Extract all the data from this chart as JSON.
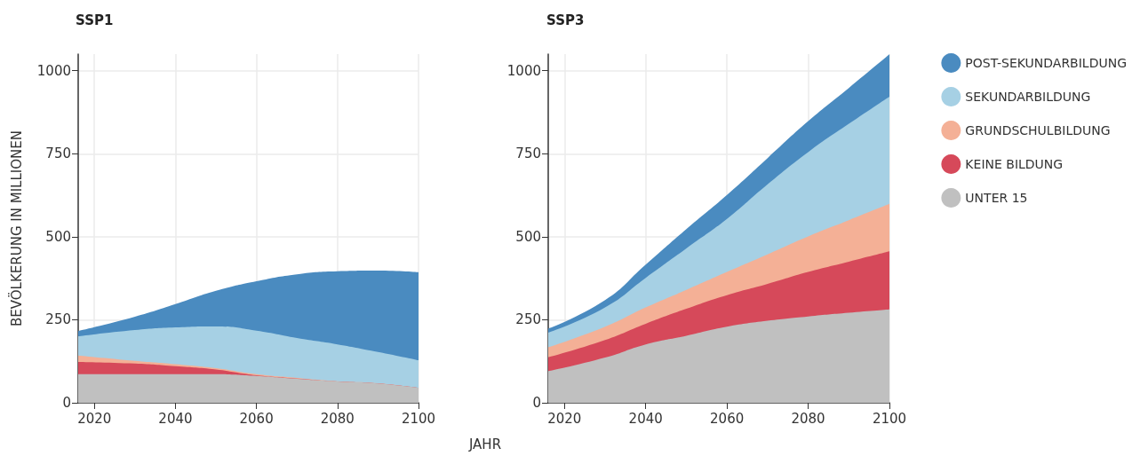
{
  "chart_data": [
    {
      "type": "area",
      "stacked": true,
      "title": "SSP1",
      "xlabel": "JAHR",
      "ylabel": "BEVÖLKERUNG IN MILLIONEN",
      "x": [
        2016,
        2030,
        2040,
        2050,
        2060,
        2070,
        2080,
        2090,
        2100
      ],
      "xlim": [
        2016,
        2100
      ],
      "xticks": [
        2020,
        2040,
        2060,
        2080,
        2100
      ],
      "ylim": [
        0,
        1050
      ],
      "yticks": [
        0,
        250,
        500,
        750,
        1000
      ],
      "grid": true,
      "legend": false,
      "series": [
        {
          "color": "#c0c0c0",
          "values": [
            86,
            86,
            86,
            86,
            81,
            72,
            64,
            58,
            45
          ]
        },
        {
          "color": "#d6495a",
          "values": [
            37,
            32,
            24,
            14,
            2,
            1,
            0,
            0,
            0
          ]
        },
        {
          "color": "#f4b096",
          "values": [
            19,
            8,
            6,
            4,
            3,
            2,
            1,
            1,
            0
          ]
        },
        {
          "color": "#a6d0e4",
          "values": [
            58,
            93,
            111,
            126,
            131,
            120,
            111,
            94,
            83
          ]
        },
        {
          "color": "#4a8bc0",
          "values": [
            16,
            40,
            70,
            107,
            149,
            192,
            220,
            245,
            265
          ]
        }
      ]
    },
    {
      "type": "area",
      "stacked": true,
      "title": "SSP3",
      "x": [
        2016,
        2030,
        2040,
        2050,
        2060,
        2070,
        2080,
        2090,
        2100
      ],
      "xlim": [
        2016,
        2100
      ],
      "xticks": [
        2020,
        2040,
        2060,
        2080,
        2100
      ],
      "ylim": [
        0,
        1050
      ],
      "yticks": [
        0,
        250,
        500,
        750,
        1000
      ],
      "grid": true,
      "legend": "right",
      "series": [
        {
          "name": "UNTER 15",
          "color": "#c0c0c0",
          "values": [
            95,
            136,
            176,
            202,
            229,
            247,
            260,
            271,
            281
          ]
        },
        {
          "name": "KEINE BILDUNG",
          "color": "#d6495a",
          "values": [
            42,
            53,
            62,
            81,
            95,
            111,
            134,
            154,
            175
          ]
        },
        {
          "name": "GRUNDSCHULBILDUNG",
          "color": "#f4b096",
          "values": [
            30,
            40,
            49,
            57,
            70,
            89,
            107,
            125,
            143
          ]
        },
        {
          "name": "SEKUNDARBILDUNG",
          "color": "#a6d0e4",
          "values": [
            44,
            58,
            89,
            125,
            160,
            211,
            254,
            290,
            323
          ]
        },
        {
          "name": "POST-SEKUNDARBILDUNG",
          "color": "#4a8bc0",
          "values": [
            12,
            22,
            40,
            58,
            72,
            79,
            93,
            108,
            127
          ]
        }
      ]
    }
  ]
}
